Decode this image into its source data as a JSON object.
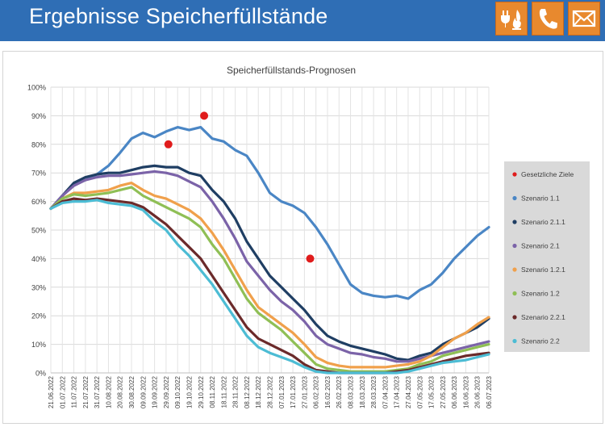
{
  "header": {
    "title": "Ergebnisse Speicherfüllstände",
    "icons": [
      {
        "name": "energy-icon",
        "label": "gas-and-electricity"
      },
      {
        "name": "phone-icon",
        "label": "phone"
      },
      {
        "name": "mail-icon",
        "label": "mail"
      }
    ]
  },
  "colors": {
    "header_bg": "#2f6eb5",
    "icon_bg": "#e8892e",
    "legend_bg": "#d9d9d9"
  },
  "chart_data": {
    "type": "line",
    "title": "Speicherfüllstands-Prognosen",
    "xlabel": "",
    "ylabel": "",
    "ylim": [
      0,
      100
    ],
    "y_ticks": [
      "0%",
      "10%",
      "20%",
      "30%",
      "40%",
      "50%",
      "60%",
      "70%",
      "80%",
      "90%",
      "100%"
    ],
    "categories": [
      "21.06.2022",
      "01.07.2022",
      "11.07.2022",
      "21.07.2022",
      "31.07.2022",
      "10.08.2022",
      "20.08.2022",
      "30.08.2022",
      "09.09.2022",
      "19.09.2022",
      "29.09.2022",
      "09.10.2022",
      "19.10.2022",
      "29.10.2022",
      "08.11.2022",
      "18.11.2022",
      "28.11.2022",
      "08.12.2022",
      "18.12.2022",
      "28.12.2022",
      "07.01.2023",
      "17.01.2023",
      "27.01.2023",
      "06.02.2023",
      "16.02.2023",
      "26.02.2023",
      "08.03.2023",
      "18.03.2023",
      "28.03.2023",
      "07.04.2023",
      "17.04.2023",
      "27.04.2023",
      "07.05.2023",
      "17.05.2023",
      "27.05.2023",
      "06.06.2023",
      "16.06.2023",
      "26.06.2023",
      "06.07.2023"
    ],
    "series": [
      {
        "name": "Szenario 1.1",
        "color": "#4a86c5",
        "values": [
          57.5,
          62,
          66,
          67.5,
          69.5,
          72.5,
          77,
          82,
          84,
          82.5,
          84.5,
          86,
          85,
          86,
          82,
          81,
          78,
          76,
          70,
          63,
          60,
          58.5,
          56,
          51,
          45,
          38,
          31,
          28,
          27,
          26.5,
          27,
          26,
          29,
          31,
          35,
          40,
          44,
          48,
          51
        ]
      },
      {
        "name": "Szenario 2.1.1",
        "color": "#1f3e63",
        "values": [
          57.5,
          62,
          66.5,
          68.5,
          69.5,
          70,
          70,
          71,
          72,
          72.5,
          72,
          72,
          70,
          69,
          64,
          60,
          54,
          46,
          40,
          34,
          30,
          26,
          22,
          17,
          13,
          11,
          9.5,
          8.5,
          7.5,
          6.5,
          5,
          4.5,
          6,
          7,
          10,
          12,
          14,
          16,
          19
        ]
      },
      {
        "name": "Szenario 2.1",
        "color": "#7b63a8",
        "values": [
          57.5,
          62,
          65.5,
          67.5,
          68.5,
          69,
          69,
          69.5,
          70,
          70.5,
          70,
          69,
          67,
          65,
          60,
          54,
          47,
          39,
          34,
          29,
          25,
          22,
          18,
          13,
          10,
          8.5,
          7,
          6.5,
          5.5,
          5,
          4,
          4,
          5,
          6,
          7,
          8,
          9,
          10,
          11
        ]
      },
      {
        "name": "Szenario 1.2.1",
        "color": "#f0a04b",
        "values": [
          57.5,
          61,
          63,
          63,
          63.5,
          64,
          65.5,
          66.5,
          64,
          62,
          61,
          59,
          57,
          54,
          49,
          43,
          36,
          29,
          23,
          20,
          17,
          14,
          10,
          5.5,
          3.5,
          2.5,
          2,
          2,
          2,
          2,
          2.5,
          3,
          4,
          6,
          9,
          12,
          14,
          17,
          19.5
        ]
      },
      {
        "name": "Szenario 1.2",
        "color": "#8fbf55",
        "values": [
          57.5,
          61,
          62.5,
          62,
          62.5,
          63,
          64,
          65,
          62,
          60,
          58,
          56,
          54,
          51,
          45,
          40,
          33,
          26,
          21,
          18,
          15,
          11,
          7,
          3,
          1.5,
          1,
          0.5,
          0.5,
          0.5,
          0.5,
          1,
          1.5,
          3,
          4,
          6,
          7,
          8,
          9,
          10
        ]
      },
      {
        "name": "Szenario 2.2.1",
        "color": "#6b2a2a",
        "values": [
          57.5,
          60,
          61,
          60.5,
          61,
          60.5,
          60,
          59.5,
          58,
          55,
          52,
          48,
          44,
          40,
          34,
          28,
          22,
          16,
          12,
          10,
          8,
          6,
          3,
          1,
          0.5,
          0,
          0,
          0,
          0,
          0,
          0.5,
          1,
          2,
          3,
          4,
          5,
          6,
          6.5,
          7
        ]
      },
      {
        "name": "Szenario 2.2",
        "color": "#4cbcd4",
        "values": [
          57.5,
          59.5,
          60,
          60,
          60.5,
          59.5,
          59,
          58.5,
          57,
          53,
          50,
          45,
          41,
          36,
          31,
          25,
          19,
          13,
          9,
          7,
          5.5,
          4,
          2,
          0.5,
          0,
          0,
          0,
          0,
          0,
          0,
          0,
          0.5,
          1.5,
          2.5,
          3.5,
          4,
          4.5,
          5.5,
          6.5
        ]
      }
    ],
    "targets": {
      "name": "Gesetzliche Ziele",
      "color": "#e01c1c",
      "points": [
        {
          "x": "01.10.2022",
          "y": 80
        },
        {
          "x": "01.11.2022",
          "y": 90
        },
        {
          "x": "01.02.2023",
          "y": 40
        }
      ]
    },
    "legend": {
      "position": "right",
      "entries": [
        "Gesetzliche Ziele",
        "Szenario 1.1",
        "Szenario 2.1.1",
        "Szenario 2.1",
        "Szenario 1.2.1",
        "Szenario 1.2",
        "Szenario 2.2.1",
        "Szenario 2.2"
      ]
    }
  }
}
